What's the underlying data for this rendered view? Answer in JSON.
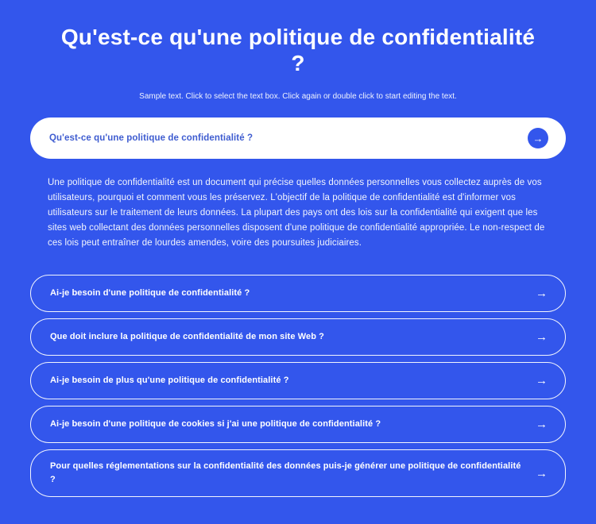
{
  "theme": {
    "background": "#3356ec",
    "panel_background": "#ffffff",
    "panel_text": "#3e5cd0",
    "text": "#ffffff"
  },
  "header": {
    "title_line1": "Qu'est-ce qu'une politique de confidentialité",
    "title_line2": "?",
    "subtitle": "Sample text. Click to select the text box. Click again or double click to start editing the text."
  },
  "icons": {
    "arrow_right": "→"
  },
  "faq": {
    "expanded": {
      "question": "Qu'est-ce qu'une politique de confidentialité ?",
      "answer": "Une politique de confidentialité est un document qui précise quelles données personnelles vous collectez auprès de vos utilisateurs, pourquoi et comment vous les préservez. L'objectif de la politique de confidentialité est d'informer vos utilisateurs sur le traitement de leurs données. La plupart des pays ont des lois sur la confidentialité qui exigent que les sites web collectant des données personnelles disposent d'une politique de confidentialité appropriée. Le non-respect de ces lois peut entraîner de lourdes amendes, voire des poursuites judiciaires."
    },
    "items": [
      {
        "question": "Ai-je besoin d'une politique de confidentialité ?"
      },
      {
        "question": "Que doit inclure la politique de confidentialité de mon site Web ?"
      },
      {
        "question": "Ai-je besoin de plus qu'une politique de confidentialité ?"
      },
      {
        "question": "Ai-je besoin d'une politique de cookies si j'ai une politique de confidentialité ?"
      },
      {
        "question": "Pour quelles réglementations sur la confidentialité des données puis-je générer une politique de confidentialité ?"
      }
    ]
  }
}
